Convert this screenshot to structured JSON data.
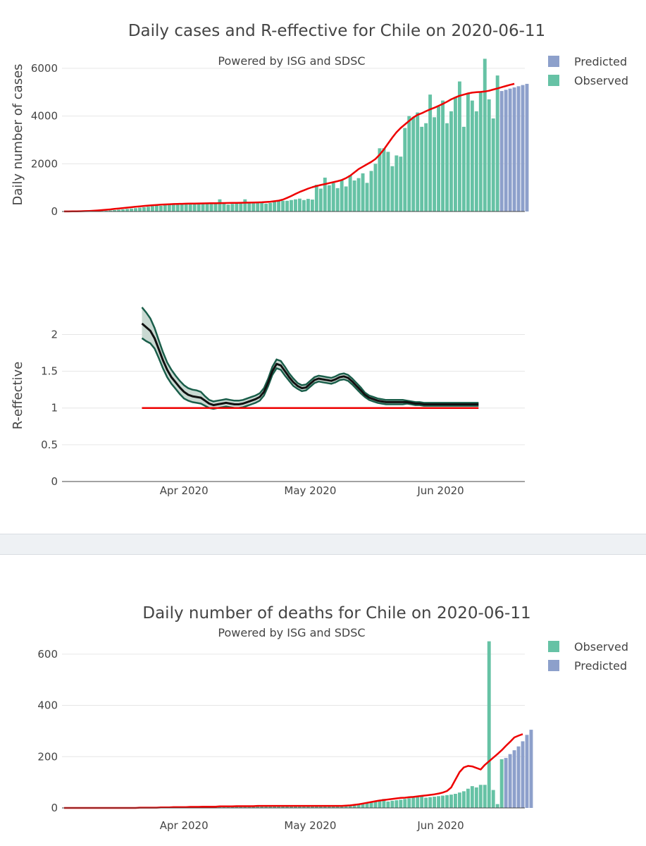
{
  "colors": {
    "observed": "#66c2a5",
    "predicted": "#8da0cb",
    "fit": "#ee0000",
    "r_line": "#111111",
    "r_band_edge": "#1a5e4a",
    "r_band_fill": "#c9d9d2",
    "grid": "#e6e6e6",
    "axis": "#444444",
    "divider": "#eef1f4"
  },
  "chart_data": [
    {
      "id": "cases",
      "type": "bar",
      "title": "Daily cases and R-effective for Chile on 2020-06-11",
      "subtitle": "Powered by ISG and SDSC",
      "ylabel": "Daily number of cases",
      "ylim": [
        0,
        6500
      ],
      "yticks": [
        0,
        2000,
        4000,
        6000
      ],
      "ytick_labels": [
        "0",
        "2000",
        "4000",
        "6000"
      ],
      "xlim": [
        "2020-03-03",
        "2020-06-21"
      ],
      "grid": true,
      "legend": {
        "placement": "top-right",
        "entries": [
          {
            "label": "Predicted",
            "color_key": "predicted"
          },
          {
            "label": "Observed",
            "color_key": "observed"
          }
        ]
      },
      "x_start": "2020-03-03",
      "observed": [
        1,
        2,
        4,
        6,
        7,
        10,
        13,
        15,
        20,
        25,
        35,
        45,
        60,
        75,
        90,
        110,
        125,
        140,
        160,
        180,
        200,
        230,
        260,
        240,
        280,
        290,
        300,
        300,
        310,
        350,
        330,
        310,
        350,
        320,
        320,
        380,
        370,
        510,
        350,
        290,
        320,
        350,
        360,
        510,
        380,
        360,
        400,
        360,
        330,
        360,
        430,
        440,
        450,
        450,
        480,
        510,
        540,
        480,
        530,
        500,
        1120,
        960,
        1420,
        1100,
        1200,
        980,
        1300,
        1050,
        1520,
        1300,
        1400,
        1600,
        1200,
        1700,
        2000,
        2650,
        2650,
        2500,
        1900,
        2350,
        2300,
        3500,
        4000,
        3950,
        4150,
        3550,
        3700,
        4900,
        3950,
        4400,
        4650,
        3700,
        4200,
        4800,
        5450,
        3550,
        4950,
        4650,
        4200,
        5000,
        6400,
        4700,
        3900,
        5700
      ],
      "predicted": [
        5050,
        5100,
        5150,
        5200,
        5250,
        5300,
        5350
      ],
      "fit": [
        2,
        3,
        5,
        8,
        12,
        17,
        24,
        33,
        45,
        58,
        73,
        90,
        108,
        127,
        145,
        163,
        180,
        198,
        215,
        232,
        248,
        262,
        275,
        286,
        296,
        305,
        312,
        318,
        323,
        327,
        330,
        333,
        336,
        339,
        342,
        345,
        348,
        351,
        354,
        357,
        360,
        363,
        366,
        369,
        372,
        376,
        381,
        388,
        398,
        412,
        430,
        455,
        500,
        570,
        650,
        740,
        820,
        890,
        960,
        1020,
        1070,
        1110,
        1150,
        1190,
        1230,
        1270,
        1320,
        1400,
        1500,
        1640,
        1780,
        1880,
        1980,
        2080,
        2200,
        2380,
        2600,
        2850,
        3100,
        3320,
        3500,
        3650,
        3800,
        3940,
        4050,
        4120,
        4200,
        4280,
        4350,
        4430,
        4510,
        4600,
        4700,
        4780,
        4850,
        4900,
        4950,
        4980,
        5000,
        5010,
        5030,
        5060,
        5110,
        5160,
        5210,
        5260,
        5310,
        5350
      ]
    },
    {
      "id": "r_effective",
      "type": "line",
      "ylabel": "R-effective",
      "ylim": [
        0,
        2.35
      ],
      "yticks": [
        0,
        0.5,
        1,
        1.5,
        2
      ],
      "ytick_labels": [
        "0",
        "0.5",
        "1",
        "1.5",
        "2"
      ],
      "xlim": [
        "2020-03-03",
        "2020-06-21"
      ],
      "xticks": [
        "2020-04-01",
        "2020-05-01",
        "2020-06-01"
      ],
      "xtick_labels": [
        "Apr 2020",
        "May 2020",
        "Jun 2020"
      ],
      "grid": true,
      "reference_line": 1,
      "x_start": "2020-03-22",
      "mean": [
        2.15,
        2.1,
        2.05,
        1.95,
        1.8,
        1.65,
        1.52,
        1.42,
        1.35,
        1.28,
        1.22,
        1.18,
        1.16,
        1.15,
        1.14,
        1.1,
        1.06,
        1.04,
        1.05,
        1.06,
        1.07,
        1.06,
        1.05,
        1.05,
        1.06,
        1.08,
        1.1,
        1.12,
        1.15,
        1.22,
        1.35,
        1.5,
        1.6,
        1.58,
        1.5,
        1.42,
        1.35,
        1.3,
        1.27,
        1.28,
        1.33,
        1.38,
        1.4,
        1.39,
        1.38,
        1.37,
        1.39,
        1.42,
        1.43,
        1.41,
        1.36,
        1.3,
        1.24,
        1.18,
        1.14,
        1.12,
        1.1,
        1.09,
        1.08,
        1.08,
        1.08,
        1.08,
        1.08,
        1.08,
        1.07,
        1.06,
        1.06,
        1.05,
        1.05,
        1.05,
        1.05,
        1.05,
        1.05,
        1.05,
        1.05,
        1.05,
        1.05,
        1.05,
        1.05,
        1.05,
        1.05
      ],
      "upper": [
        2.37,
        2.3,
        2.22,
        2.09,
        1.92,
        1.76,
        1.62,
        1.52,
        1.44,
        1.37,
        1.31,
        1.27,
        1.25,
        1.24,
        1.22,
        1.16,
        1.11,
        1.09,
        1.1,
        1.11,
        1.12,
        1.11,
        1.1,
        1.1,
        1.11,
        1.13,
        1.15,
        1.17,
        1.2,
        1.27,
        1.4,
        1.56,
        1.66,
        1.64,
        1.56,
        1.47,
        1.4,
        1.34,
        1.31,
        1.32,
        1.37,
        1.42,
        1.44,
        1.43,
        1.42,
        1.41,
        1.43,
        1.46,
        1.47,
        1.45,
        1.4,
        1.34,
        1.28,
        1.21,
        1.17,
        1.15,
        1.13,
        1.12,
        1.11,
        1.11,
        1.11,
        1.11,
        1.11,
        1.1,
        1.09,
        1.08,
        1.08,
        1.07,
        1.07,
        1.07,
        1.07,
        1.07,
        1.07,
        1.07,
        1.07,
        1.07,
        1.07,
        1.07,
        1.07,
        1.07,
        1.07
      ],
      "lower": [
        1.95,
        1.91,
        1.88,
        1.81,
        1.68,
        1.54,
        1.42,
        1.33,
        1.26,
        1.19,
        1.13,
        1.1,
        1.08,
        1.07,
        1.06,
        1.03,
        1.0,
        0.99,
        1.0,
        1.01,
        1.02,
        1.01,
        1.0,
        1.0,
        1.01,
        1.03,
        1.05,
        1.07,
        1.1,
        1.17,
        1.3,
        1.45,
        1.54,
        1.52,
        1.44,
        1.37,
        1.3,
        1.26,
        1.23,
        1.24,
        1.29,
        1.34,
        1.36,
        1.35,
        1.34,
        1.33,
        1.35,
        1.38,
        1.39,
        1.37,
        1.32,
        1.26,
        1.2,
        1.15,
        1.11,
        1.09,
        1.07,
        1.06,
        1.05,
        1.05,
        1.05,
        1.05,
        1.05,
        1.06,
        1.05,
        1.04,
        1.04,
        1.03,
        1.03,
        1.03,
        1.03,
        1.03,
        1.03,
        1.03,
        1.03,
        1.03,
        1.03,
        1.03,
        1.03,
        1.03,
        1.03
      ]
    },
    {
      "id": "deaths",
      "type": "bar",
      "title": "Daily number of deaths for Chile on 2020-06-11",
      "subtitle": "Powered by ISG and SDSC",
      "ylabel": "",
      "ylim": [
        0,
        660
      ],
      "yticks": [
        0,
        200,
        400,
        600
      ],
      "ytick_labels": [
        "0",
        "200",
        "400",
        "600"
      ],
      "xlim": [
        "2020-03-03",
        "2020-06-21"
      ],
      "xticks": [
        "2020-04-01",
        "2020-05-01",
        "2020-06-01"
      ],
      "xtick_labels": [
        "Apr 2020",
        "May 2020",
        "Jun 2020"
      ],
      "grid": true,
      "legend": {
        "placement": "top-right",
        "entries": [
          {
            "label": "Observed",
            "color_key": "observed"
          },
          {
            "label": "Predicted",
            "color_key": "predicted"
          }
        ]
      },
      "x_start": "2020-03-03",
      "observed": [
        0,
        0,
        0,
        0,
        0,
        0,
        0,
        0,
        0,
        0,
        0,
        0,
        0,
        0,
        0,
        0,
        0,
        0,
        1,
        1,
        1,
        1,
        1,
        2,
        2,
        2,
        3,
        3,
        3,
        4,
        4,
        4,
        5,
        5,
        5,
        5,
        6,
        6,
        6,
        7,
        7,
        7,
        7,
        7,
        8,
        8,
        8,
        8,
        8,
        8,
        8,
        8,
        8,
        8,
        8,
        8,
        8,
        8,
        8,
        8,
        8,
        8,
        8,
        8,
        8,
        8,
        8,
        8,
        9,
        10,
        12,
        15,
        18,
        22,
        25,
        30,
        35,
        25,
        28,
        30,
        32,
        35,
        38,
        40,
        42,
        45,
        40,
        42,
        44,
        46,
        48,
        50,
        52,
        55,
        60,
        65,
        75,
        85,
        80,
        90,
        90,
        650,
        70,
        15,
        190
      ],
      "predicted": [
        195,
        210,
        225,
        240,
        260,
        285,
        305
      ],
      "fit": [
        0,
        0,
        0,
        0,
        0,
        0,
        0,
        0,
        0,
        0,
        0,
        0,
        0,
        0,
        0,
        0,
        0,
        0,
        1,
        1,
        1,
        1,
        1,
        2,
        2,
        2,
        3,
        3,
        3,
        3,
        4,
        4,
        4,
        5,
        5,
        5,
        5,
        6,
        6,
        6,
        6,
        7,
        7,
        7,
        7,
        7,
        8,
        8,
        8,
        8,
        8,
        8,
        8,
        8,
        8,
        8,
        8,
        8,
        8,
        8,
        8,
        8,
        8,
        8,
        8,
        8,
        8,
        9,
        10,
        12,
        14,
        17,
        20,
        23,
        26,
        29,
        31,
        33,
        35,
        37,
        39,
        40,
        42,
        43,
        45,
        47,
        49,
        51,
        53,
        56,
        60,
        66,
        80,
        110,
        140,
        158,
        164,
        162,
        156,
        150,
        168,
        182,
        196,
        210,
        225,
        242,
        258,
        275,
        282,
        288
      ]
    }
  ]
}
